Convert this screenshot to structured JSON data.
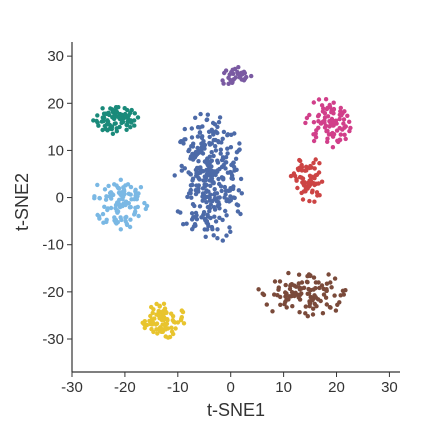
{
  "chart_data": {
    "type": "scatter",
    "title": "",
    "xlabel": "t-SNE1",
    "ylabel": "t-SNE2",
    "xlim": [
      -30,
      32
    ],
    "ylim": [
      -37,
      33
    ],
    "xticks": [
      -30,
      -20,
      -10,
      0,
      10,
      20,
      30
    ],
    "yticks": [
      -30,
      -20,
      -10,
      0,
      10,
      20,
      30
    ],
    "xtick_labels": [
      "-30",
      "-20",
      "-10",
      "0",
      "10",
      "20",
      "30"
    ],
    "ytick_labels": [
      "-30",
      "-20",
      "-10",
      "0",
      "10",
      "20",
      "30"
    ],
    "grid": false,
    "legend": false,
    "clusters": [
      {
        "color": "#1a8a7a",
        "center": [
          -21.5,
          16.5
        ],
        "spread": [
          4.5,
          3.2
        ],
        "count": 80
      },
      {
        "color": "#7ab8e4",
        "center": [
          -21.0,
          -1.0
        ],
        "spread": [
          5.5,
          6.8
        ],
        "count": 105
      },
      {
        "color": "#e8c42e",
        "center": [
          -13.0,
          -26.0
        ],
        "spread": [
          4.5,
          4.0
        ],
        "count": 80
      },
      {
        "color": "#7a5aa2",
        "center": [
          1.0,
          25.5
        ],
        "spread": [
          3.2,
          2.2
        ],
        "count": 32
      },
      {
        "color": "#4c6aa8",
        "center": [
          -4.0,
          4.0
        ],
        "spread": [
          7.0,
          14.5
        ],
        "count": 320
      },
      {
        "color": "#d13f8a",
        "center": [
          18.5,
          16.0
        ],
        "spread": [
          4.5,
          5.5
        ],
        "count": 85
      },
      {
        "color": "#cc4444",
        "center": [
          14.5,
          3.5
        ],
        "spread": [
          3.2,
          5.5
        ],
        "count": 70
      },
      {
        "color": "#7a4a3a",
        "center": [
          14.0,
          -20.5
        ],
        "spread": [
          9.0,
          5.0
        ],
        "count": 110
      }
    ]
  }
}
